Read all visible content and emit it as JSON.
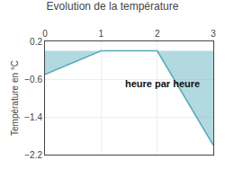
{
  "chart_data": {
    "type": "area",
    "title": "Evolution de la température",
    "ylabel": "Température en °C",
    "x": [
      0,
      1,
      2,
      3
    ],
    "values": [
      -0.5,
      0.0,
      0.0,
      -2.0
    ],
    "color": "#55aabb",
    "xlim": [
      0,
      3
    ],
    "ylim": [
      -2.2,
      0.2
    ],
    "xticks": [
      0,
      1,
      2,
      3
    ],
    "yticks": [
      0.2,
      -0.6,
      -1.4,
      -2.2
    ],
    "grid": true,
    "annotations": [
      {
        "text": "heure par heure",
        "x": 2.1,
        "y": -0.55
      }
    ]
  }
}
